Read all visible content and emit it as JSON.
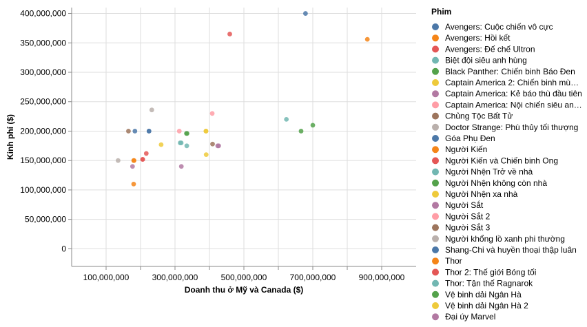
{
  "chart_data": {
    "type": "scatter",
    "xlabel": "Doanh thu ở Mỹ và Canada ($)",
    "ylabel": "Kinh phí ($)",
    "xlim": [
      0,
      1000000000
    ],
    "ylim": [
      -30000000,
      410000000
    ],
    "x_ticks": [
      {
        "value": 100000000,
        "label": "100,000,000"
      },
      {
        "value": 300000000,
        "label": "300,000,000"
      },
      {
        "value": 500000000,
        "label": "500,000,000"
      },
      {
        "value": 700000000,
        "label": "700,000,000"
      },
      {
        "value": 900000000,
        "label": "900,000,000"
      }
    ],
    "x_gridlines": [
      100000000,
      200000000,
      300000000,
      400000000,
      500000000,
      600000000,
      700000000,
      800000000,
      900000000
    ],
    "y_ticks": [
      {
        "value": 0,
        "label": "0"
      },
      {
        "value": 50000000,
        "label": "50,000,000"
      },
      {
        "value": 100000000,
        "label": "100,000,000"
      },
      {
        "value": 150000000,
        "label": "150,000,000"
      },
      {
        "value": 200000000,
        "label": "200,000,000"
      },
      {
        "value": 250000000,
        "label": "250,000,000"
      },
      {
        "value": 300000000,
        "label": "300,000,000"
      },
      {
        "value": 350000000,
        "label": "350,000,000"
      },
      {
        "value": 400000000,
        "label": "400,000,000"
      }
    ],
    "grid": true,
    "legend_title": "Phim",
    "legend_position": "right",
    "series": [
      {
        "name": "Avengers: Cuộc chiến vô cực",
        "color": "#4c78a8",
        "points": [
          [
            678815000,
            400000000
          ]
        ]
      },
      {
        "name": "Avengers: Hồi kết",
        "color": "#f58518",
        "points": [
          [
            858373000,
            356000000
          ]
        ]
      },
      {
        "name": "Avengers: Đế chế Ultron",
        "color": "#e45756",
        "points": [
          [
            459005000,
            365000000
          ]
        ]
      },
      {
        "name": "Biệt đội siêu anh hùng",
        "color": "#72b7b2",
        "points": [
          [
            623357000,
            220000000
          ]
        ]
      },
      {
        "name": "Black Panther: Chiến binh Báo Đen",
        "color": "#54a24b",
        "points": [
          [
            700059000,
            210000000
          ]
        ]
      },
      {
        "name": "Captain America 2: Chiến binh mùa đông",
        "color": "#eeca3b",
        "points": [
          [
            259766000,
            177000000
          ]
        ]
      },
      {
        "name": "Captain America: Kẻ báo thù đầu tiên",
        "color": "#b279a2",
        "points": [
          [
            176654000,
            140000000
          ]
        ]
      },
      {
        "name": "Captain America: Nội chiến siêu anh hùng",
        "color": "#ff9da6",
        "points": [
          [
            408084000,
            230000000
          ]
        ]
      },
      {
        "name": "Chủng Tộc Bất Tử",
        "color": "#9d755d",
        "points": [
          [
            164870000,
            200000000
          ]
        ]
      },
      {
        "name": "Doctor Strange: Phù thủy tối thượng",
        "color": "#bab0ac",
        "points": [
          [
            232641000,
            236000000
          ]
        ]
      },
      {
        "name": "Góa Phụ Đen",
        "color": "#4c78a8",
        "points": [
          [
            183651000,
            200000000
          ],
          [
            224543000,
            200000000
          ]
        ]
      },
      {
        "name": "Người Kiến",
        "color": "#f58518",
        "points": [
          [
            180202000,
            150000000
          ],
          [
            180000000,
            110000000
          ]
        ]
      },
      {
        "name": "Người Kiến và Chiến binh Ong",
        "color": "#e45756",
        "points": [
          [
            216648000,
            162000000
          ],
          [
            206000000,
            152000000
          ]
        ]
      },
      {
        "name": "Người Nhện Trở về nhà",
        "color": "#72b7b2",
        "points": [
          [
            334201000,
            175000000
          ],
          [
            318000000,
            180000000
          ]
        ]
      },
      {
        "name": "Người Nhện không còn nhà",
        "color": "#54a24b",
        "points": [
          [
            335000000,
            196000000
          ],
          [
            666000000,
            200000000
          ]
        ]
      },
      {
        "name": "Người Nhện xa nhà",
        "color": "#eeca3b",
        "points": [
          [
            390532000,
            160000000
          ],
          [
            390000000,
            200000000
          ]
        ]
      },
      {
        "name": "Người Sắt",
        "color": "#b279a2",
        "points": [
          [
            318412000,
            140000000
          ],
          [
            424000000,
            175000000
          ]
        ]
      },
      {
        "name": "Người Sắt 2",
        "color": "#ff9da6",
        "points": [
          [
            312433000,
            200000000
          ]
        ]
      },
      {
        "name": "Người Sắt 3",
        "color": "#9d755d",
        "points": [
          [
            409014000,
            178000000
          ]
        ]
      },
      {
        "name": "Người khổng lồ xanh phi thường",
        "color": "#bab0ac",
        "points": [
          [
            134806000,
            150000000
          ]
        ]
      },
      {
        "name": "Shang-Chi và huyền thoại thập luân",
        "color": "#4c78a8",
        "points": [
          [
            224543000,
            200000000
          ]
        ]
      },
      {
        "name": "Thor",
        "color": "#f58518",
        "points": [
          [
            181030000,
            150000000
          ]
        ]
      },
      {
        "name": "Thor 2: Thế giới Bóng tối",
        "color": "#e45756",
        "points": [
          [
            206362000,
            152000000
          ]
        ]
      },
      {
        "name": "Thor: Tận thế Ragnarok",
        "color": "#72b7b2",
        "points": [
          [
            315058000,
            180000000
          ]
        ]
      },
      {
        "name": "Vệ binh dải Ngân Hà",
        "color": "#54a24b",
        "points": [
          [
            333176000,
            196000000
          ]
        ]
      },
      {
        "name": "Vệ binh dải Ngân Hà 2",
        "color": "#eeca3b",
        "points": [
          [
            389813000,
            200000000
          ]
        ]
      },
      {
        "name": "Đại úy Marvel",
        "color": "#b279a2",
        "points": [
          [
            426829000,
            175000000
          ]
        ]
      }
    ]
  }
}
